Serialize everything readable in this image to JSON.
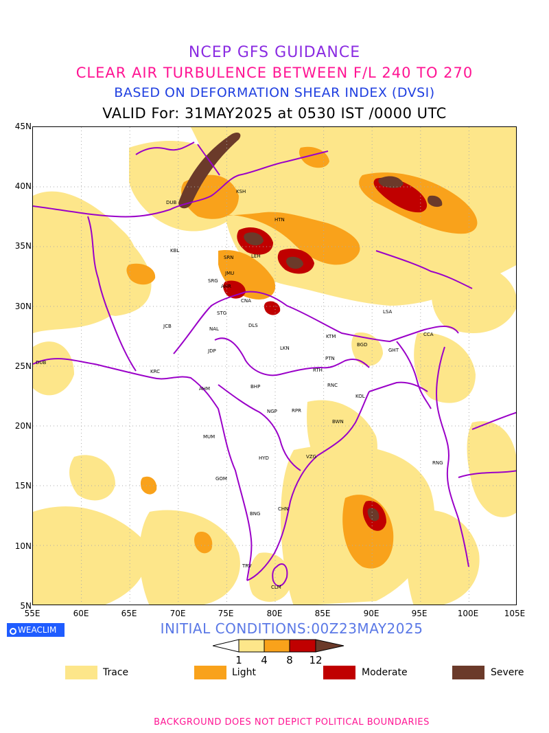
{
  "titles": {
    "line1": "NCEP GFS GUIDANCE",
    "line2": "CLEAR AIR TURBULENCE BETWEEN F/L 240 TO 270",
    "line3": "BASED ON DEFORMATION SHEAR INDEX (DVSI)",
    "line4": "VALID For: 31MAY2025 at 0530 IST /0000 UTC"
  },
  "colors": {
    "title1": "#8a2be2",
    "title2": "#ff1493",
    "title3": "#1f3fe0",
    "title4": "#000000",
    "trace": "#fde68a",
    "light": "#f9a21b",
    "moderate": "#c00000",
    "severe": "#6b3a2a",
    "boundary": "#9a00c8",
    "footer": "#ff1493"
  },
  "latitude_labels": [
    "45N",
    "40N",
    "35N",
    "30N",
    "25N",
    "20N",
    "15N",
    "10N",
    "5N"
  ],
  "longitude_labels": [
    "55E",
    "60E",
    "65E",
    "70E",
    "75E",
    "80E",
    "85E",
    "90E",
    "95E",
    "100E",
    "105E"
  ],
  "cities": [
    {
      "code": "DUB"
    },
    {
      "code": "KSH"
    },
    {
      "code": "HTN"
    },
    {
      "code": "KBL"
    },
    {
      "code": "SRN"
    },
    {
      "code": "LEH"
    },
    {
      "code": "JMU"
    },
    {
      "code": "SRG"
    },
    {
      "code": "AHR"
    },
    {
      "code": "CNA"
    },
    {
      "code": "STG"
    },
    {
      "code": "LSA"
    },
    {
      "code": "JCB"
    },
    {
      "code": "NAL"
    },
    {
      "code": "DLS"
    },
    {
      "code": "KTM"
    },
    {
      "code": "BGD"
    },
    {
      "code": "CCA"
    },
    {
      "code": "GHT"
    },
    {
      "code": "JDP"
    },
    {
      "code": "LKN"
    },
    {
      "code": "PTN"
    },
    {
      "code": "DUB"
    },
    {
      "code": "KRC"
    },
    {
      "code": "RTH"
    },
    {
      "code": "AHM"
    },
    {
      "code": "BHP"
    },
    {
      "code": "RNC"
    },
    {
      "code": "KOL"
    },
    {
      "code": "NGP"
    },
    {
      "code": "RPR"
    },
    {
      "code": "BWN"
    },
    {
      "code": "MUM"
    },
    {
      "code": "HYD"
    },
    {
      "code": "VZG"
    },
    {
      "code": "RNG"
    },
    {
      "code": "GOM"
    },
    {
      "code": "CHN"
    },
    {
      "code": "BNG"
    },
    {
      "code": "TRV"
    },
    {
      "code": "CLM"
    }
  ],
  "footer_left": {
    "logo": "WEACLIM",
    "initial_conditions": "INITIAL CONDITIONS:00Z23MAY2025"
  },
  "colorbar": {
    "ticks": [
      "1",
      "4",
      "8",
      "12"
    ]
  },
  "legend": [
    {
      "label": "Trace",
      "color": "#fde68a"
    },
    {
      "label": "Light",
      "color": "#f9a21b"
    },
    {
      "label": "Moderate",
      "color": "#c00000"
    },
    {
      "label": "Severe",
      "color": "#6b3a2a"
    }
  ],
  "footer_note": "BACKGROUND DOES NOT DEPICT POLITICAL BOUNDARIES"
}
